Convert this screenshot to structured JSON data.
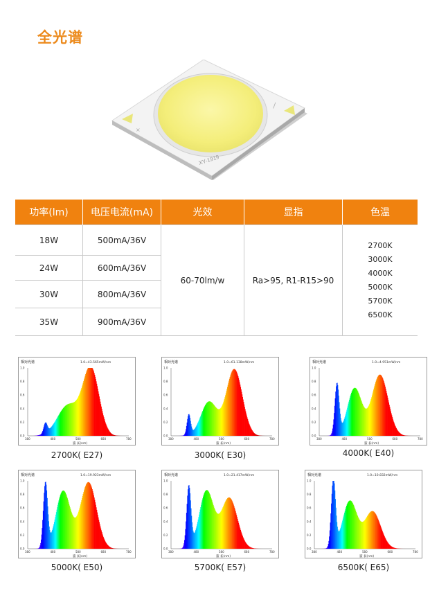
{
  "title": "全光谱",
  "chip_label": "XY-1919",
  "table": {
    "headers": [
      "功率(lm)",
      "电压电流(mA)",
      "光效",
      "显指",
      "色温"
    ],
    "rows": [
      {
        "power": "18W",
        "current": "500mA/36V"
      },
      {
        "power": "24W",
        "current": "600mA/36V"
      },
      {
        "power": "30W",
        "current": "800mA/36V"
      },
      {
        "power": "35W",
        "current": "900mA/36V"
      }
    ],
    "efficacy": "60-70lm/w",
    "cri": "Ra>95, R1-R15>90",
    "temps": [
      "2700K",
      "3000K",
      "4000K",
      "5000K",
      "5700K",
      "6500K"
    ]
  },
  "spectra": [
    {
      "caption": "2700K( E27)",
      "header": "相对光谱",
      "note": "1.0=43.565mW/nm",
      "xlabel": "波 长(nm)",
      "peaks": [
        [
          450,
          0.15,
          10
        ],
        [
          540,
          0.45,
          60
        ],
        [
          630,
          0.98,
          45
        ]
      ]
    },
    {
      "caption": "3000K( E30)",
      "header": "相对光谱",
      "note": "1.0=61.138mW/nm",
      "xlabel": "波 长(nm)",
      "peaks": [
        [
          450,
          0.3,
          10
        ],
        [
          530,
          0.5,
          45
        ],
        [
          630,
          0.98,
          45
        ]
      ]
    },
    {
      "caption": "4000K( E40)",
      "header": "相对光谱",
      "note": "1.0=4.951mW/nm",
      "xlabel": "波 长(nm)",
      "peaks": [
        [
          450,
          0.75,
          12
        ],
        [
          520,
          0.7,
          40
        ],
        [
          620,
          0.9,
          45
        ]
      ]
    },
    {
      "caption": "5000K( E50)",
      "header": "相对光谱",
      "note": "1.0=19.923mW/nm",
      "xlabel": "波 长(nm)",
      "peaks": [
        [
          450,
          0.95,
          12
        ],
        [
          520,
          0.85,
          40
        ],
        [
          620,
          0.98,
          45
        ]
      ]
    },
    {
      "caption": "5700K( E57)",
      "header": "相对光谱",
      "note": "1.0=21.417mW/nm",
      "xlabel": "波 长(nm)",
      "peaks": [
        [
          450,
          0.9,
          12
        ],
        [
          520,
          0.85,
          40
        ],
        [
          610,
          0.75,
          45
        ]
      ]
    },
    {
      "caption": "6500K( E65)",
      "header": "相对光谱",
      "note": "1.0=10.832mW/nm",
      "xlabel": "波 长(nm)",
      "peaks": [
        [
          455,
          1.0,
          12
        ],
        [
          520,
          0.7,
          40
        ],
        [
          610,
          0.55,
          45
        ]
      ]
    }
  ],
  "spectra_axis": {
    "xticks": [
      "380",
      "480",
      "580",
      "680",
      "780"
    ],
    "yticks": [
      "0.0",
      "0.2",
      "0.4",
      "0.6",
      "0.8",
      "1.0"
    ]
  }
}
